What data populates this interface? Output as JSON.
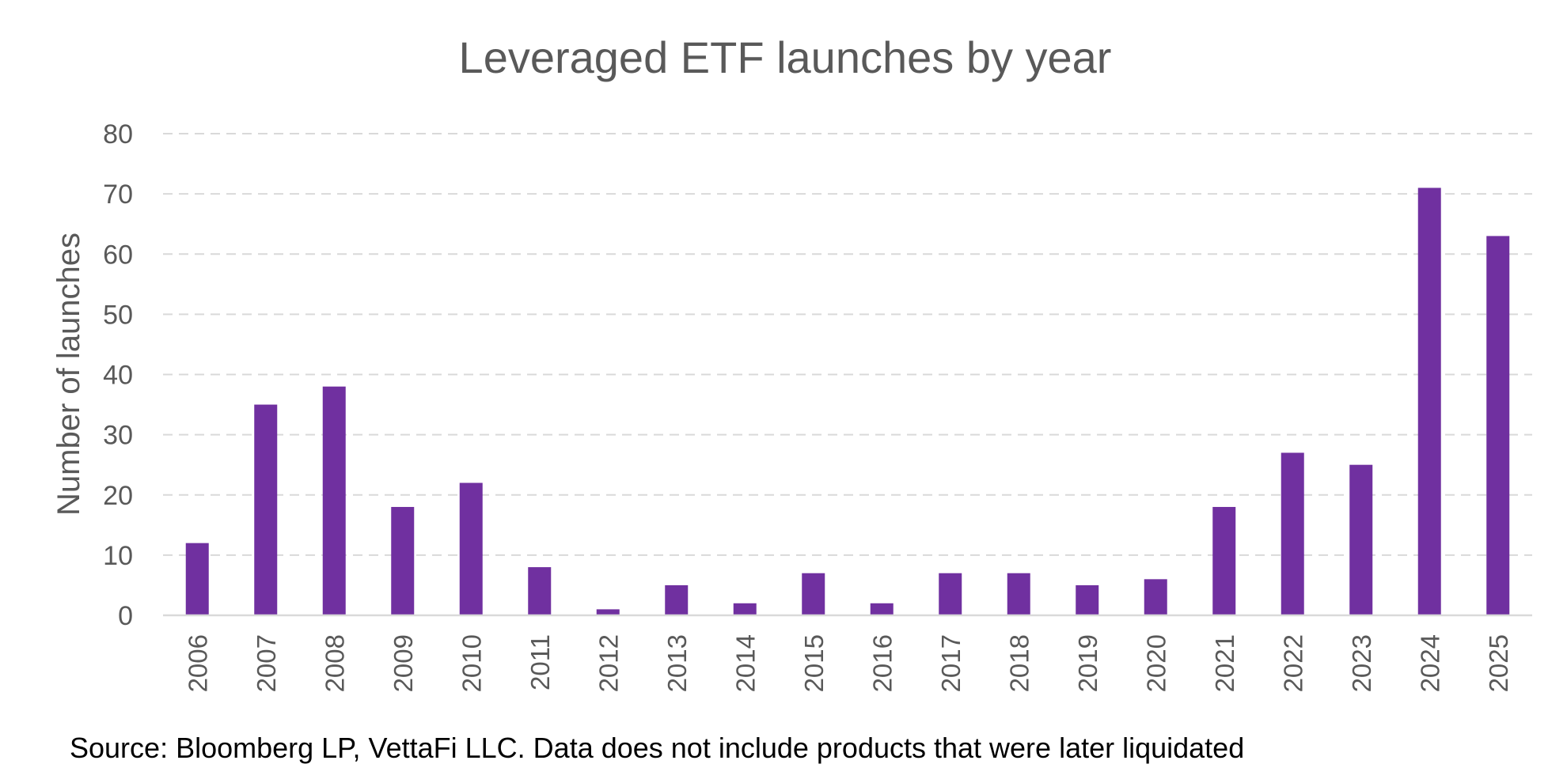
{
  "chart_data": {
    "type": "bar",
    "title": "Leveraged ETF launches by year",
    "xlabel": "",
    "ylabel": "Number of launches",
    "ylim": [
      0,
      80
    ],
    "yticks": [
      "0",
      "10",
      "20",
      "30",
      "40",
      "50",
      "60",
      "70",
      "80"
    ],
    "grid": true,
    "legend": "none",
    "bar_color": "#7030a0",
    "categories": [
      "2006",
      "2007",
      "2008",
      "2009",
      "2010",
      "2011",
      "2012",
      "2013",
      "2014",
      "2015",
      "2016",
      "2017",
      "2018",
      "2019",
      "2020",
      "2021",
      "2022",
      "2023",
      "2024",
      "2025"
    ],
    "values": [
      12,
      35,
      38,
      18,
      22,
      8,
      1,
      5,
      2,
      7,
      2,
      7,
      7,
      5,
      6,
      18,
      27,
      25,
      71,
      63
    ]
  },
  "footer": {
    "source": "Source: Bloomberg LP, VettaFi LLC. Data does not include products that were later liquidated"
  }
}
